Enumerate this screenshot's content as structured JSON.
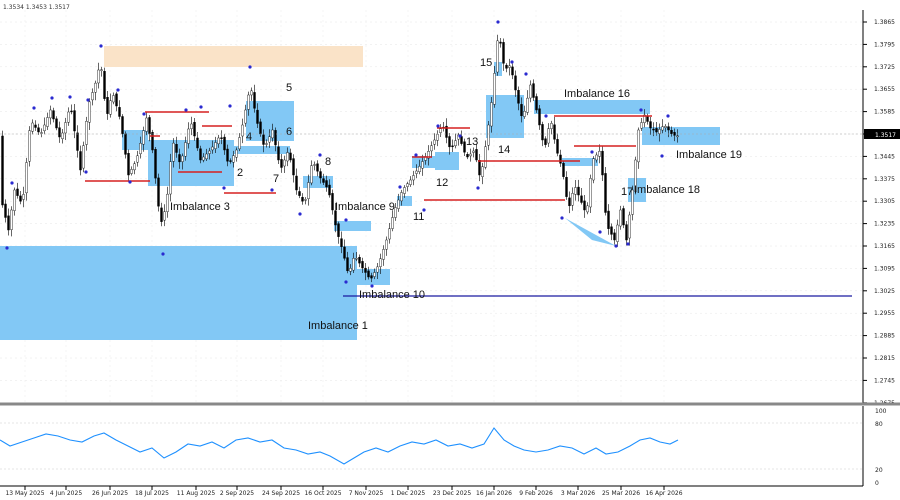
{
  "header": {
    "ohlc": "1.3534 1.3453 1.3517"
  },
  "chart_data": {
    "type": "candlestick",
    "y_ticks": [
      "1.3865",
      "1.3795",
      "1.3725",
      "1.3655",
      "1.3585",
      "1.3515",
      "1.3445",
      "1.3375",
      "1.3305",
      "1.3235",
      "1.3165",
      "1.3095",
      "1.3025",
      "1.2955",
      "1.2885",
      "1.2815",
      "1.2745",
      "1.2675"
    ],
    "current_price_label": "1.3517",
    "x_ticks": [
      "13 May 2025",
      "4 Jun 2025",
      "26 Jun 2025",
      "18 Jul 2025",
      "11 Aug 2025",
      "2 Sep 2025",
      "24 Sep 2025",
      "16 Oct 2025",
      "7 Nov 2025",
      "1 Dec 2025",
      "23 Dec 2025",
      "16 Jan 2026",
      "9 Feb 2026",
      "3 Mar 2026",
      "25 Mar 2026",
      "16 Apr 2026"
    ],
    "ylim": [
      1.2675,
      1.39
    ],
    "annotations": [
      "Imbalance 1",
      "Imbalance 3",
      "Imbalance 9",
      "Imbalance 10",
      "Imbalance 16",
      "Imbalance 18",
      "Imbalance 19",
      "2",
      "4",
      "5",
      "6",
      "7",
      "8",
      "11",
      "12",
      "13",
      "14",
      "15",
      "17"
    ],
    "oscillator": {
      "ticks": [
        "100",
        "80",
        "20",
        "0"
      ],
      "ylim": [
        0,
        100
      ]
    }
  }
}
